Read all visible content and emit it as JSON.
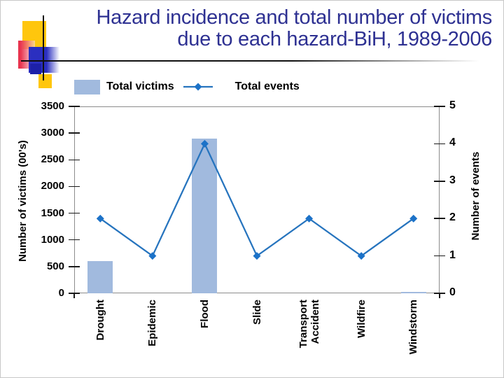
{
  "slide": {
    "title_line1": "Hazard incidence and total number of victims",
    "title_line2": "due to each hazard-BiH, 1989-2006",
    "title_color": "#2E3192"
  },
  "legend": {
    "items": [
      {
        "label": "Total victims",
        "marker": "bar-swatch"
      },
      {
        "label": "Total events",
        "marker": "line-diamond"
      }
    ]
  },
  "chart_data": {
    "type": "combo-bar-line",
    "categories": [
      "Drought",
      "Epidemic",
      "Flood",
      "Slide",
      "Transport\nAccident",
      "Wildfire",
      "Windstorm"
    ],
    "series": [
      {
        "name": "Total victims",
        "type": "bar",
        "axis": "left",
        "values": [
          600,
          0,
          2900,
          0,
          0,
          0,
          25
        ]
      },
      {
        "name": "Total events",
        "type": "line",
        "axis": "right",
        "values": [
          2,
          1,
          4,
          1,
          2,
          1,
          2
        ]
      }
    ],
    "ylabel_left": "Number of victims (00's)",
    "ylabel_right": "Number of events",
    "ylim_left": [
      0,
      3500
    ],
    "ylim_right": [
      0,
      5
    ],
    "yticks_left": [
      0,
      500,
      1000,
      1500,
      2000,
      2500,
      3000,
      3500
    ],
    "yticks_right": [
      0,
      1,
      2,
      3,
      4,
      5
    ],
    "grid": false,
    "legend_position": "top-left",
    "colors": {
      "bar": "#A1BADE",
      "line": "#2674BE",
      "marker": "#1C72C8",
      "axis": "#8C8C8C",
      "tick": "#1a1a1a",
      "text": "#000000"
    }
  },
  "decor": {
    "yellow": "#FFC60D",
    "red": "#E8344E",
    "blue": "#2B2FC0",
    "dark_blue": "#1D20A8",
    "line": "#111111"
  }
}
